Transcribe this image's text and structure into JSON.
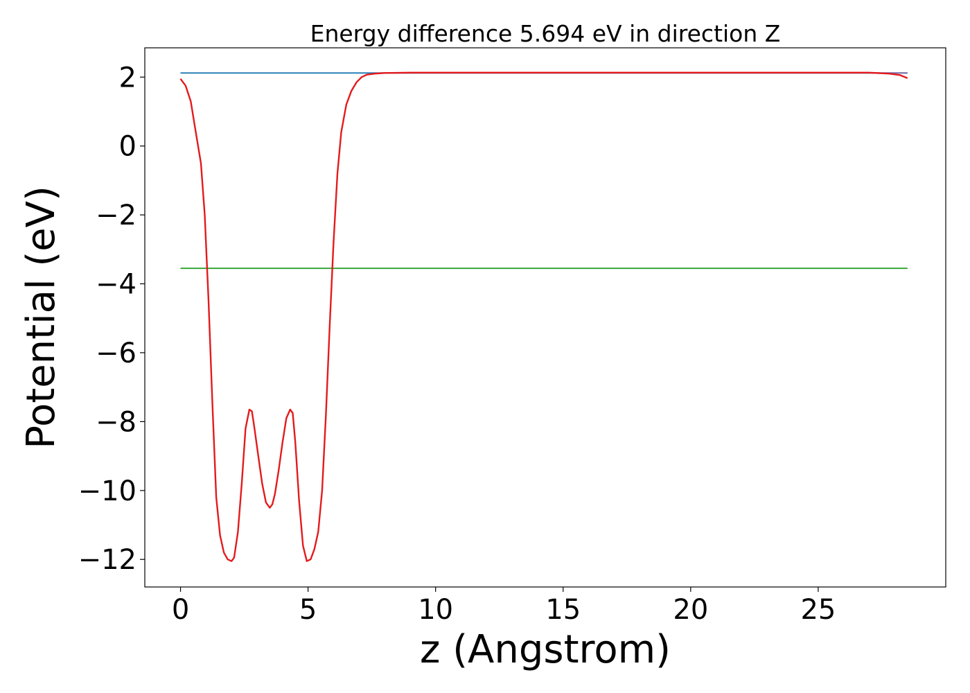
{
  "chart_data": {
    "type": "line",
    "title": "Energy difference 5.694 eV in direction Z",
    "xlabel": "z (Angstrom)",
    "ylabel": "Potential (eV)",
    "xlim": [
      -1.4,
      30.0
    ],
    "ylim": [
      -12.8,
      2.85
    ],
    "xticks": [
      0,
      5,
      10,
      15,
      20,
      25
    ],
    "yticks": [
      2,
      0,
      -2,
      -4,
      -6,
      -8,
      -10,
      -12
    ],
    "xtick_labels": [
      "0",
      "5",
      "10",
      "15",
      "20",
      "25"
    ],
    "ytick_labels": [
      "2",
      "0",
      "−2",
      "−4",
      "−6",
      "−8",
      "−10",
      "−12"
    ],
    "grid": false,
    "series": [
      {
        "color": "#1f77b4",
        "x": [
          0.0,
          28.5
        ],
        "y": [
          2.12,
          2.12
        ]
      },
      {
        "color": "#2ca02c",
        "x": [
          0.0,
          28.5
        ],
        "y": [
          -3.55,
          -3.55
        ]
      },
      {
        "color": "#7b6aa6",
        "x": [
          7.8,
          28.5
        ],
        "y": [
          2.12,
          2.12
        ]
      },
      {
        "color": "#e31a1c",
        "x": [
          0.0,
          0.2,
          0.4,
          0.6,
          0.8,
          0.95,
          1.1,
          1.25,
          1.4,
          1.55,
          1.7,
          1.85,
          2.0,
          2.1,
          2.25,
          2.4,
          2.55,
          2.7,
          2.8,
          2.9,
          3.05,
          3.2,
          3.35,
          3.5,
          3.6,
          3.7,
          3.85,
          4.0,
          4.15,
          4.3,
          4.4,
          4.5,
          4.65,
          4.8,
          4.95,
          5.1,
          5.25,
          5.4,
          5.55,
          5.7,
          5.85,
          6.0,
          6.15,
          6.3,
          6.5,
          6.7,
          6.9,
          7.1,
          7.3,
          7.6,
          8.0,
          9.0,
          12.0,
          20.0,
          27.0,
          27.8,
          28.2,
          28.5
        ],
        "y": [
          1.95,
          1.75,
          1.3,
          0.4,
          -0.5,
          -2.0,
          -4.5,
          -7.5,
          -10.2,
          -11.3,
          -11.8,
          -12.0,
          -12.05,
          -11.95,
          -11.2,
          -9.8,
          -8.2,
          -7.65,
          -7.7,
          -8.2,
          -9.0,
          -9.8,
          -10.35,
          -10.5,
          -10.4,
          -10.1,
          -9.4,
          -8.6,
          -7.9,
          -7.65,
          -7.75,
          -8.6,
          -10.3,
          -11.6,
          -12.05,
          -12.0,
          -11.7,
          -11.2,
          -10.0,
          -7.8,
          -5.2,
          -2.8,
          -0.8,
          0.4,
          1.2,
          1.6,
          1.85,
          2.0,
          2.07,
          2.1,
          2.12,
          2.13,
          2.13,
          2.13,
          2.13,
          2.1,
          2.06,
          1.97
        ]
      }
    ]
  }
}
